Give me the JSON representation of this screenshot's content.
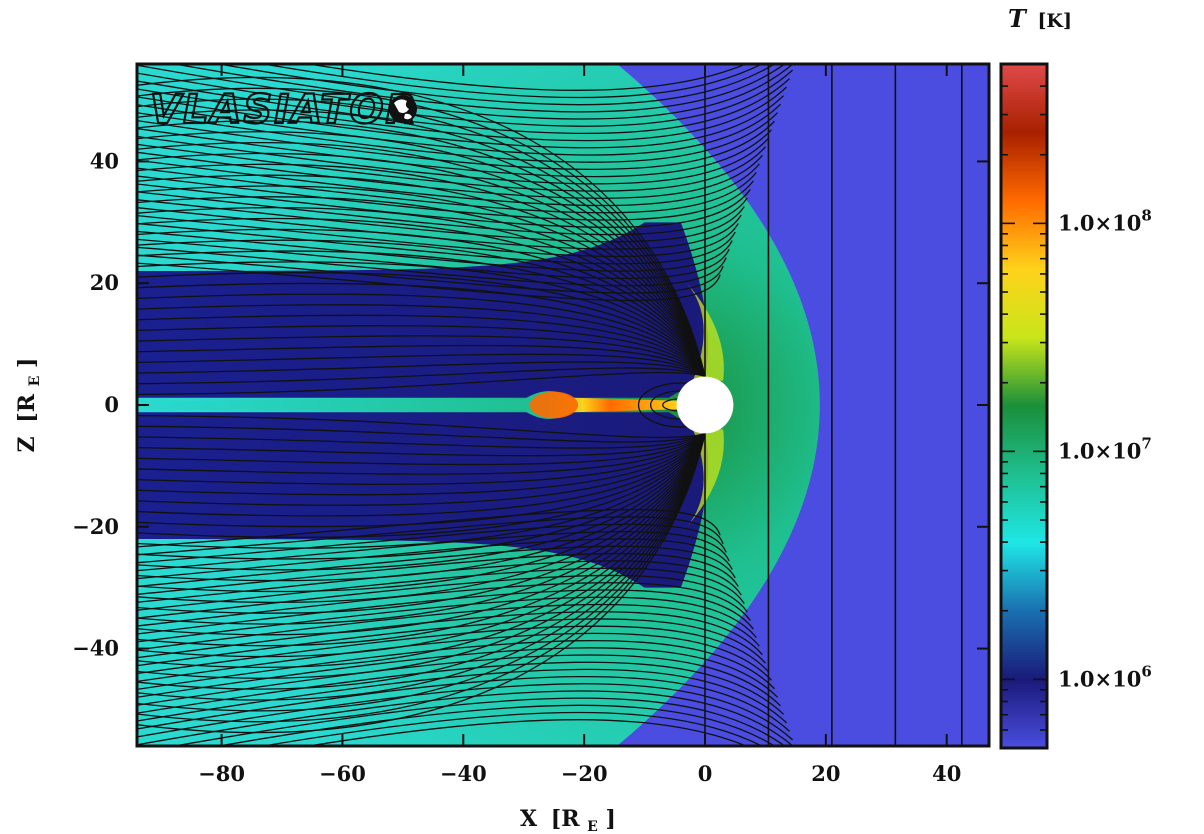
{
  "chart_data": {
    "type": "heatmap",
    "title": "",
    "logo_text": "VLASIATOR",
    "xlabel": {
      "main": "X",
      "unit": "[R",
      "sub": "E",
      "close": "]"
    },
    "ylabel": {
      "main": "Z",
      "unit": "[R",
      "sub": "E",
      "close": "]"
    },
    "xlim": [
      -94,
      47
    ],
    "ylim": [
      -56,
      56
    ],
    "x_ticks": [
      -80,
      -60,
      -40,
      -20,
      0,
      20,
      40
    ],
    "y_ticks": [
      -40,
      -20,
      0,
      20,
      40
    ],
    "x_tick_labels": [
      "−80",
      "−60",
      "−40",
      "−20",
      "0",
      "20",
      "40"
    ],
    "y_tick_labels": [
      "−40",
      "−20",
      "0",
      "20",
      "40"
    ],
    "colorbar": {
      "label_var": "T",
      "label_unit": "[K]",
      "scale": "log",
      "range": [
        500000,
        500000000
      ],
      "ticks": [
        1000000,
        10000000,
        100000000
      ],
      "tick_labels": [
        {
          "mant": "1.0×10",
          "exp": "6"
        },
        {
          "mant": "1.0×10",
          "exp": "7"
        },
        {
          "mant": "1.0×10",
          "exp": "8"
        }
      ],
      "colormap": [
        "#4a4de0",
        "#1a1a7a",
        "#1a6fb0",
        "#1fe6e6",
        "#1fbf8f",
        "#1a8f3a",
        "#c8e61a",
        "#ffd21a",
        "#ff6a00",
        "#a82000",
        "#e04a4a"
      ]
    },
    "regions": {
      "solar_wind_T": 900000,
      "sheath_T": 12000000,
      "lobe_T": 1000000,
      "plasma_sheet_T": 60000000,
      "bow_shock_nose_x": 19,
      "inner_boundary_radius": 4.7
    },
    "field_lines": {
      "solar_wind_vertical_x": [
        0,
        10.5,
        21,
        31.5,
        42.5
      ],
      "count_tail": 30
    }
  }
}
